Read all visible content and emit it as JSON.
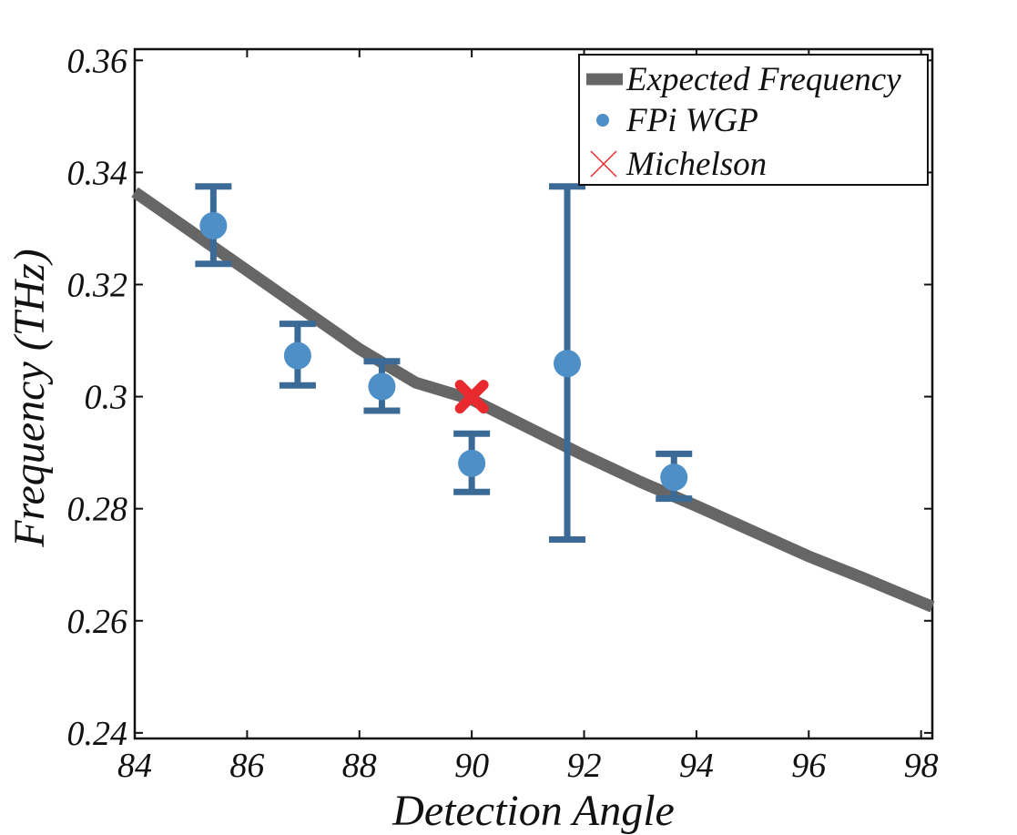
{
  "chart_data": {
    "type": "scatter",
    "title": "",
    "xlabel": "Detection Angle",
    "ylabel": "Frequency (THz)",
    "xlim": [
      84,
      98.2
    ],
    "ylim": [
      0.239,
      0.362
    ],
    "xticks": [
      84,
      86,
      88,
      90,
      92,
      94,
      96,
      98
    ],
    "xtick_labels": [
      "84",
      "86",
      "88",
      "90",
      "92",
      "94",
      "96",
      "98"
    ],
    "yticks": [
      0.24,
      0.26,
      0.28,
      0.3,
      0.32,
      0.34,
      0.36
    ],
    "ytick_labels": [
      "0.24",
      "0.26",
      "0.28",
      "0.3",
      "0.32",
      "0.34",
      "0.36"
    ],
    "grid": false,
    "legend_position": "top-right",
    "series": [
      {
        "name": "Expected Frequency",
        "kind": "line",
        "color": "#666666",
        "x": [
          84,
          85,
          86,
          87,
          88,
          89,
          90,
          91,
          92,
          93,
          94,
          95,
          96,
          97,
          98.2
        ],
        "y": [
          0.3365,
          0.3295,
          0.3225,
          0.3155,
          0.3085,
          0.3025,
          0.2995,
          0.2945,
          0.2895,
          0.2848,
          0.2805,
          0.276,
          0.2715,
          0.2675,
          0.2625
        ]
      },
      {
        "name": "FPi WGP",
        "kind": "scatter_errorbar",
        "color": "#4d8fc6",
        "error_color": "#3b6a96",
        "x": [
          85.4,
          86.9,
          88.4,
          90.0,
          91.7,
          93.6
        ],
        "y": [
          0.3305,
          0.3073,
          0.3018,
          0.2881,
          0.3059,
          0.2856
        ],
        "y_lower": [
          0.3237,
          0.302,
          0.2975,
          0.283,
          0.2745,
          0.2818
        ],
        "y_upper": [
          0.3375,
          0.313,
          0.3063,
          0.2934,
          0.3375,
          0.2898
        ]
      },
      {
        "name": "Michelson",
        "kind": "marker_x",
        "color": "#e8292e",
        "x": [
          90.0
        ],
        "y": [
          0.3
        ]
      }
    ]
  }
}
